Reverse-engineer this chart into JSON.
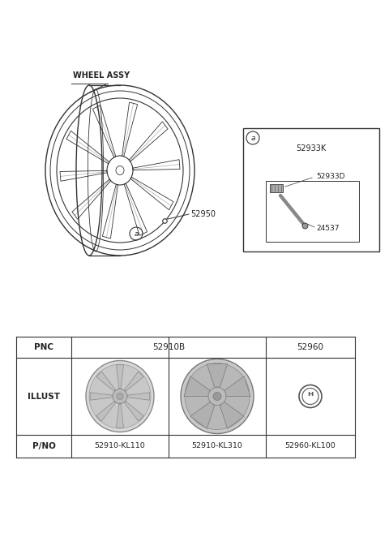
{
  "bg_color": "#ffffff",
  "title_text": "WHEEL ASSY",
  "part_52950": "52950",
  "part_a_label": "a",
  "inset_a_label": "a",
  "inset_52933K": "52933K",
  "inset_52933D": "52933D",
  "inset_24537": "24537",
  "table_pnc_label": "PNC",
  "table_illust_label": "ILLUST",
  "table_pno_label": "P/NO",
  "table_col1_pnc": "52910B",
  "table_col2_pnc": "52960",
  "table_col1_pno": "52910-KL110",
  "table_col2_pno": "52910-KL310",
  "table_col3_pno": "52960-KL100",
  "lc": "#333333",
  "tc": "#222222"
}
